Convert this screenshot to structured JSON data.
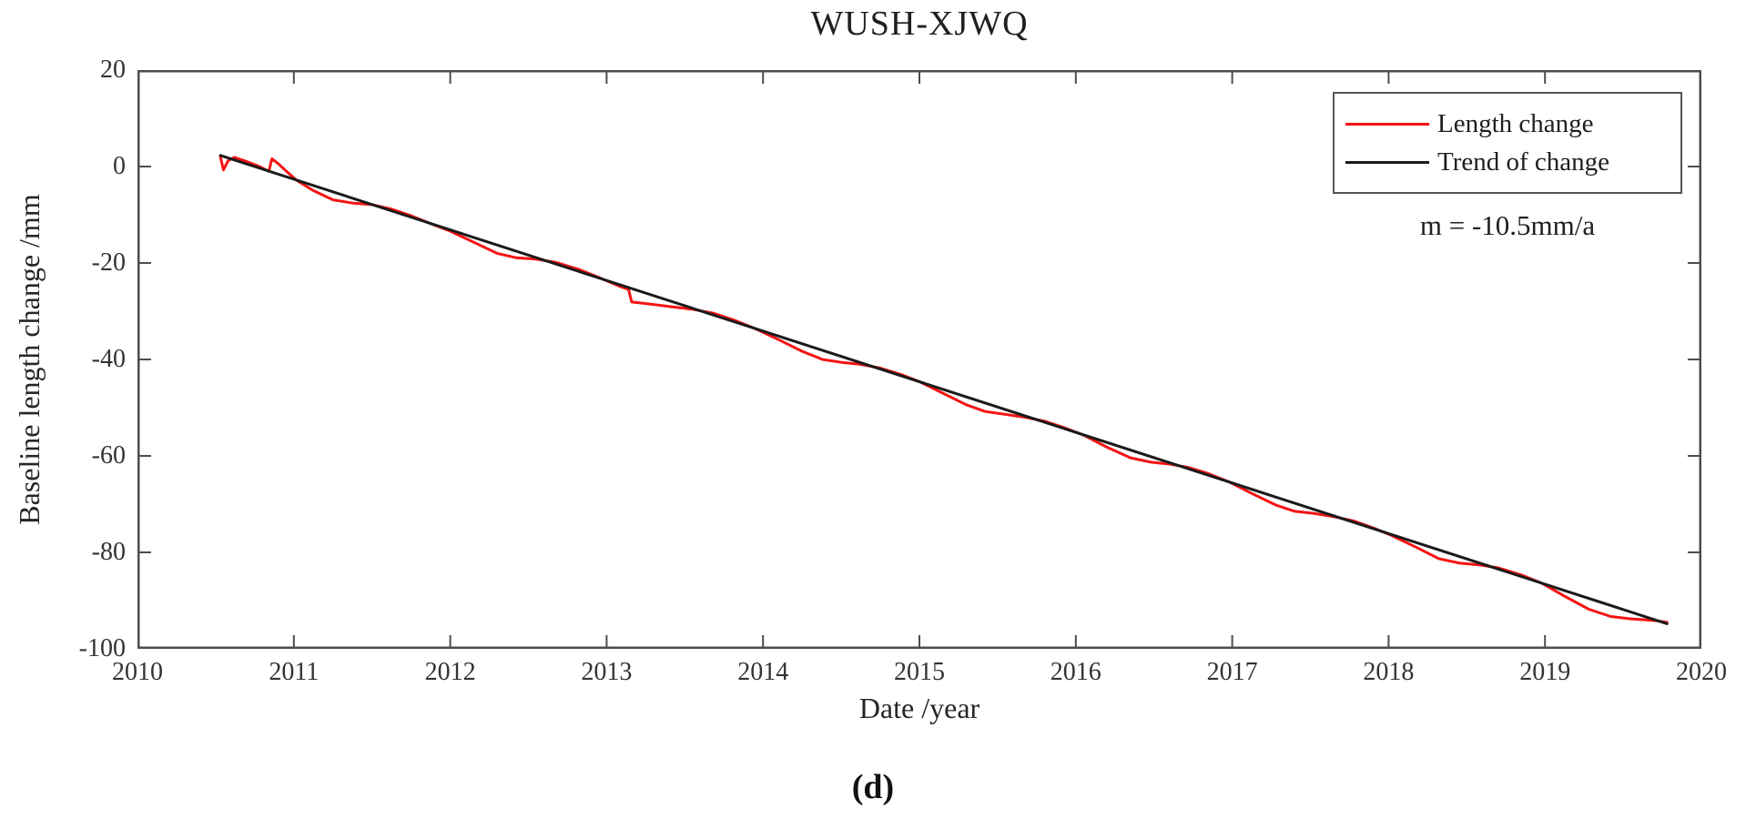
{
  "figure": {
    "caption": "(d)"
  },
  "palette": {
    "series_red": "#f41414",
    "series_black": "#1a1a1a",
    "axis": "#4d4d4d",
    "text": "#262626"
  },
  "chart_data": {
    "type": "line",
    "title": "WUSH-XJWQ",
    "xlabel": "Date /year",
    "ylabel": "Baseline length change /mm",
    "xlim": [
      2010,
      2020
    ],
    "ylim": [
      -100,
      20
    ],
    "x_ticks": [
      2010,
      2011,
      2012,
      2013,
      2014,
      2015,
      2016,
      2017,
      2018,
      2019,
      2020
    ],
    "y_ticks": [
      20,
      0,
      -20,
      -40,
      -60,
      -80,
      -100
    ],
    "grid": false,
    "legend_position": "top-right",
    "annotation": "m = -10.5mm/a",
    "slope_mm_per_year": -10.5,
    "series": [
      {
        "name": "Length change",
        "color": "#f41414",
        "points": [
          [
            2010.53,
            2.0
          ],
          [
            2010.55,
            -0.7
          ],
          [
            2010.58,
            1.2
          ],
          [
            2010.62,
            1.9
          ],
          [
            2010.7,
            1.0
          ],
          [
            2010.78,
            0.0
          ],
          [
            2010.84,
            -1.0
          ],
          [
            2010.86,
            1.6
          ],
          [
            2010.9,
            0.6
          ],
          [
            2010.96,
            -1.2
          ],
          [
            2011.02,
            -2.9
          ],
          [
            2011.12,
            -4.9
          ],
          [
            2011.25,
            -6.9
          ],
          [
            2011.38,
            -7.6
          ],
          [
            2011.5,
            -7.9
          ],
          [
            2011.62,
            -8.8
          ],
          [
            2011.75,
            -10.2
          ],
          [
            2011.88,
            -11.9
          ],
          [
            2012.0,
            -13.4
          ],
          [
            2012.15,
            -15.7
          ],
          [
            2012.3,
            -18.0
          ],
          [
            2012.42,
            -18.9
          ],
          [
            2012.55,
            -19.2
          ],
          [
            2012.68,
            -19.9
          ],
          [
            2012.82,
            -21.3
          ],
          [
            2012.95,
            -23.0
          ],
          [
            2013.08,
            -24.8
          ],
          [
            2013.14,
            -25.5
          ],
          [
            2013.16,
            -28.1
          ],
          [
            2013.22,
            -28.3
          ],
          [
            2013.3,
            -28.6
          ],
          [
            2013.42,
            -29.1
          ],
          [
            2013.55,
            -29.6
          ],
          [
            2013.68,
            -30.4
          ],
          [
            2013.82,
            -31.9
          ],
          [
            2013.95,
            -33.6
          ],
          [
            2014.1,
            -35.9
          ],
          [
            2014.25,
            -38.3
          ],
          [
            2014.38,
            -40.0
          ],
          [
            2014.5,
            -40.6
          ],
          [
            2014.62,
            -41.0
          ],
          [
            2014.75,
            -41.8
          ],
          [
            2014.88,
            -43.1
          ],
          [
            2015.0,
            -44.6
          ],
          [
            2015.15,
            -47.0
          ],
          [
            2015.3,
            -49.4
          ],
          [
            2015.42,
            -50.8
          ],
          [
            2015.55,
            -51.4
          ],
          [
            2015.68,
            -52.0
          ],
          [
            2015.8,
            -52.8
          ],
          [
            2015.92,
            -54.1
          ],
          [
            2016.05,
            -55.7
          ],
          [
            2016.2,
            -58.2
          ],
          [
            2016.35,
            -60.4
          ],
          [
            2016.48,
            -61.3
          ],
          [
            2016.6,
            -61.7
          ],
          [
            2016.72,
            -62.4
          ],
          [
            2016.85,
            -63.7
          ],
          [
            2016.98,
            -65.4
          ],
          [
            2017.12,
            -67.7
          ],
          [
            2017.28,
            -70.2
          ],
          [
            2017.4,
            -71.5
          ],
          [
            2017.52,
            -71.9
          ],
          [
            2017.65,
            -72.6
          ],
          [
            2017.78,
            -73.5
          ],
          [
            2017.9,
            -74.9
          ],
          [
            2018.02,
            -76.5
          ],
          [
            2018.18,
            -79.0
          ],
          [
            2018.32,
            -81.3
          ],
          [
            2018.45,
            -82.2
          ],
          [
            2018.58,
            -82.6
          ],
          [
            2018.7,
            -83.2
          ],
          [
            2018.85,
            -84.7
          ],
          [
            2018.98,
            -86.4
          ],
          [
            2019.12,
            -89.0
          ],
          [
            2019.28,
            -91.8
          ],
          [
            2019.42,
            -93.3
          ],
          [
            2019.55,
            -93.8
          ],
          [
            2019.65,
            -94.0
          ],
          [
            2019.72,
            -94.2
          ],
          [
            2019.78,
            -94.5
          ]
        ]
      },
      {
        "name": "Trend of change",
        "color": "#1a1a1a",
        "points": [
          [
            2010.53,
            2.3
          ],
          [
            2019.78,
            -94.8
          ]
        ]
      }
    ]
  }
}
